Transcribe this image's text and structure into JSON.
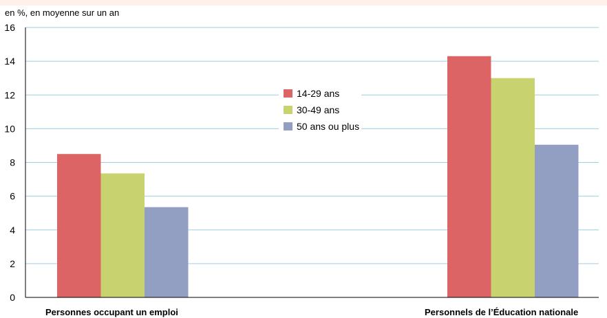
{
  "chart_data": {
    "type": "bar",
    "ylabel": "en %, en moyenne sur un an",
    "ylim": [
      0,
      16
    ],
    "yticks": [
      0,
      2,
      4,
      6,
      8,
      10,
      12,
      14,
      16
    ],
    "grid": true,
    "legend_position": "center",
    "categories": [
      "Personnes occupant un emploi",
      "Personnels de l’Éducation nationale"
    ],
    "series": [
      {
        "name": "14-29 ans",
        "color": "#dc6464",
        "values": [
          8.5,
          14.3
        ]
      },
      {
        "name": "30-49 ans",
        "color": "#c8d26e",
        "values": [
          7.35,
          13.0
        ]
      },
      {
        "name": "50 ans ou plus",
        "color": "#929fc3",
        "values": [
          5.35,
          9.05
        ]
      }
    ]
  },
  "colors": {
    "top_band": "#fdf1ea",
    "gridline": "#9fcde0",
    "axis": "#000000",
    "text": "#000000"
  }
}
